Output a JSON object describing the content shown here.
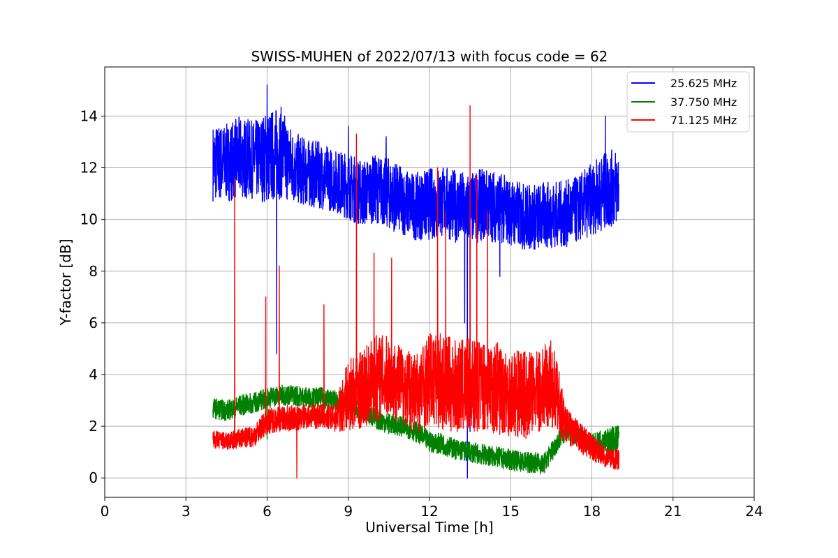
{
  "chart_data": {
    "type": "line",
    "title": "SWISS-MUHEN of 2022/07/13 with focus code = 62",
    "xlabel": "Universal Time [h]",
    "ylabel": "Y-factor [dB]",
    "xlim": [
      0,
      24
    ],
    "ylim": [
      -0.75,
      15.9
    ],
    "xticks": [
      0,
      3,
      6,
      9,
      12,
      15,
      18,
      21,
      24
    ],
    "yticks": [
      0,
      2,
      4,
      6,
      8,
      10,
      12,
      14
    ],
    "xtick_labels": [
      "0",
      "3",
      "6",
      "9",
      "12",
      "15",
      "18",
      "21",
      "24"
    ],
    "ytick_labels": [
      "0",
      "2",
      "4",
      "6",
      "8",
      "10",
      "12",
      "14"
    ],
    "grid": true,
    "legend_position": "top-right",
    "series": [
      {
        "name": "25.625 MHz",
        "color": "#0000ff",
        "x": [
          4.0,
          4.5,
          5.0,
          5.5,
          6.0,
          6.5,
          7.0,
          7.5,
          8.0,
          8.5,
          9.0,
          9.5,
          10.0,
          10.5,
          11.0,
          11.5,
          12.0,
          12.5,
          13.0,
          13.5,
          14.0,
          14.5,
          15.0,
          15.5,
          16.0,
          16.5,
          17.0,
          17.5,
          18.0,
          18.5,
          19.0
        ],
        "y": [
          12.2,
          12.2,
          12.4,
          12.3,
          12.4,
          12.6,
          12.0,
          11.8,
          11.7,
          11.5,
          11.3,
          11.0,
          11.2,
          11.0,
          10.7,
          10.5,
          10.6,
          10.7,
          10.5,
          10.4,
          10.6,
          10.5,
          10.3,
          10.1,
          10.1,
          10.2,
          10.2,
          10.4,
          10.8,
          11.1,
          11.3
        ],
        "spread": [
          1.5,
          1.5,
          1.6,
          1.5,
          1.8,
          1.8,
          1.4,
          1.3,
          1.3,
          1.2,
          1.3,
          1.3,
          1.3,
          1.4,
          1.3,
          1.3,
          1.4,
          1.4,
          1.4,
          1.4,
          1.4,
          1.4,
          1.3,
          1.3,
          1.3,
          1.3,
          1.3,
          1.3,
          1.4,
          1.5,
          1.5
        ],
        "spikes": [
          [
            6.0,
            15.2
          ],
          [
            6.35,
            4.8
          ],
          [
            13.4,
            0.0
          ],
          [
            13.5,
            1.8
          ],
          [
            13.3,
            6.0
          ],
          [
            14.6,
            7.8
          ],
          [
            9.0,
            13.6
          ],
          [
            10.4,
            13.2
          ],
          [
            18.5,
            14.0
          ]
        ]
      },
      {
        "name": "37.750 MHz",
        "color": "#008000",
        "x": [
          4.0,
          4.5,
          5.0,
          5.5,
          6.0,
          6.5,
          7.0,
          7.5,
          8.0,
          8.5,
          9.0,
          9.5,
          10.0,
          10.5,
          11.0,
          11.5,
          12.0,
          12.5,
          13.0,
          13.5,
          14.0,
          14.5,
          15.0,
          15.5,
          16.0,
          16.2,
          16.8,
          17.0,
          17.5,
          18.0,
          18.5,
          19.0
        ],
        "y": [
          2.7,
          2.6,
          2.8,
          2.9,
          3.1,
          3.2,
          3.2,
          3.1,
          3.1,
          3.0,
          2.9,
          2.6,
          2.3,
          2.1,
          2.0,
          1.8,
          1.4,
          1.3,
          1.1,
          1.0,
          0.9,
          0.8,
          0.7,
          0.6,
          0.6,
          0.5,
          1.5,
          1.8,
          1.6,
          1.3,
          1.4,
          1.5
        ],
        "spread": [
          0.4,
          0.4,
          0.4,
          0.4,
          0.4,
          0.4,
          0.4,
          0.4,
          0.4,
          0.4,
          0.4,
          0.4,
          0.4,
          0.4,
          0.4,
          0.4,
          0.4,
          0.4,
          0.4,
          0.4,
          0.4,
          0.4,
          0.4,
          0.4,
          0.4,
          0.4,
          0.4,
          0.4,
          0.4,
          0.4,
          0.5,
          0.6
        ],
        "spikes": [
          [
            4.8,
            1.2
          ],
          [
            6.0,
            1.5
          ]
        ]
      },
      {
        "name": "71.125 MHz",
        "color": "#ff0000",
        "x": [
          4.0,
          4.5,
          5.0,
          5.5,
          6.0,
          6.5,
          7.0,
          7.5,
          8.0,
          8.5,
          9.0,
          9.5,
          10.0,
          10.5,
          11.0,
          11.5,
          12.0,
          12.5,
          13.0,
          13.5,
          14.0,
          14.5,
          15.0,
          15.5,
          16.0,
          16.5,
          16.8,
          17.0,
          17.5,
          18.0,
          18.5,
          19.0
        ],
        "y": [
          1.5,
          1.4,
          1.5,
          1.6,
          2.2,
          2.3,
          2.3,
          2.4,
          2.4,
          2.3,
          3.2,
          3.4,
          3.9,
          3.9,
          3.6,
          3.3,
          3.8,
          3.7,
          3.5,
          3.6,
          3.6,
          3.5,
          3.3,
          3.2,
          3.3,
          3.7,
          2.8,
          2.1,
          1.6,
          1.2,
          0.8,
          0.7
        ],
        "spread": [
          0.35,
          0.35,
          0.4,
          0.4,
          0.5,
          0.5,
          0.5,
          0.5,
          0.5,
          0.5,
          1.4,
          1.5,
          1.7,
          1.6,
          1.5,
          1.6,
          1.8,
          1.9,
          1.8,
          1.8,
          1.8,
          1.8,
          1.7,
          1.7,
          1.6,
          1.7,
          1.3,
          0.7,
          0.6,
          0.5,
          0.4,
          0.4
        ],
        "spikes": [
          [
            4.8,
            11.6
          ],
          [
            5.95,
            7.0
          ],
          [
            6.45,
            8.2
          ],
          [
            7.1,
            0.0
          ],
          [
            8.1,
            6.7
          ],
          [
            9.3,
            13.3
          ],
          [
            9.95,
            8.7
          ],
          [
            10.6,
            8.5
          ],
          [
            12.3,
            12.0
          ],
          [
            12.6,
            10.3
          ],
          [
            13.5,
            14.4
          ],
          [
            13.75,
            11.7
          ],
          [
            14.15,
            10.3
          ]
        ]
      }
    ]
  }
}
